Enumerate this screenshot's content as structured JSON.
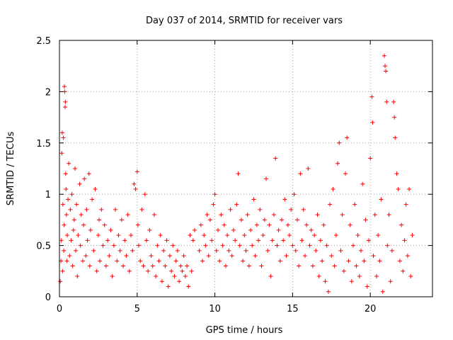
{
  "chart_data": {
    "type": "scatter",
    "title": "Day 037 of 2014, SRMTID for receiver vars",
    "xlabel": "GPS time / hours",
    "ylabel": "SRMTID / TECUs",
    "xlim": [
      0,
      24
    ],
    "ylim": [
      0,
      2.5
    ],
    "xticks": [
      0,
      5,
      10,
      15,
      20
    ],
    "xtick_labels": [
      "0",
      "5",
      "10",
      "15",
      "20"
    ],
    "yticks": [
      0,
      0.5,
      1,
      1.5,
      2,
      2.5
    ],
    "ytick_labels": [
      "0",
      "0.5",
      "1",
      "1.5",
      "2",
      "2.5"
    ],
    "grid": true,
    "marker": "+",
    "color": "#ff0000",
    "series": [
      {
        "name": "SRMTID",
        "points": [
          [
            0.05,
            0.15
          ],
          [
            0.1,
            0.35
          ],
          [
            0.12,
            0.55
          ],
          [
            0.15,
            1.4
          ],
          [
            0.18,
            1.6
          ],
          [
            0.2,
            0.25
          ],
          [
            0.22,
            0.9
          ],
          [
            0.25,
            1.55
          ],
          [
            0.28,
            0.45
          ],
          [
            0.3,
            0.7
          ],
          [
            0.32,
            2.05
          ],
          [
            0.34,
            2.0
          ],
          [
            0.36,
            1.85
          ],
          [
            0.38,
            1.9
          ],
          [
            0.4,
            1.2
          ],
          [
            0.42,
            1.05
          ],
          [
            0.45,
            0.8
          ],
          [
            0.48,
            0.35
          ],
          [
            0.5,
            0.6
          ],
          [
            0.55,
            0.95
          ],
          [
            0.6,
            1.3
          ],
          [
            0.65,
            0.4
          ],
          [
            0.7,
            0.85
          ],
          [
            0.75,
            0.55
          ],
          [
            0.8,
            1.0
          ],
          [
            0.85,
            0.3
          ],
          [
            0.9,
            0.65
          ],
          [
            0.95,
            0.75
          ],
          [
            1.0,
            1.25
          ],
          [
            1.05,
            0.45
          ],
          [
            1.1,
            0.9
          ],
          [
            1.15,
            0.2
          ],
          [
            1.2,
            0.6
          ],
          [
            1.3,
            1.1
          ],
          [
            1.35,
            0.5
          ],
          [
            1.4,
            0.8
          ],
          [
            1.5,
            0.35
          ],
          [
            1.55,
            0.7
          ],
          [
            1.6,
            1.15
          ],
          [
            1.7,
            0.4
          ],
          [
            1.75,
            0.85
          ],
          [
            1.8,
            0.55
          ],
          [
            1.9,
            1.2
          ],
          [
            1.95,
            0.3
          ],
          [
            2.0,
            0.65
          ],
          [
            2.1,
            0.95
          ],
          [
            2.2,
            0.45
          ],
          [
            2.3,
            1.05
          ],
          [
            2.4,
            0.25
          ],
          [
            2.5,
            0.6
          ],
          [
            2.55,
            0.75
          ],
          [
            2.6,
            0.35
          ],
          [
            2.7,
            0.85
          ],
          [
            2.8,
            0.5
          ],
          [
            2.9,
            0.7
          ],
          [
            3.0,
            0.3
          ],
          [
            3.1,
            0.55
          ],
          [
            3.2,
            0.4
          ],
          [
            3.3,
            0.65
          ],
          [
            3.4,
            0.2
          ],
          [
            3.5,
            0.5
          ],
          [
            3.6,
            0.85
          ],
          [
            3.7,
            0.35
          ],
          [
            3.8,
            0.6
          ],
          [
            3.9,
            0.45
          ],
          [
            4.0,
            0.75
          ],
          [
            4.1,
            0.3
          ],
          [
            4.2,
            0.55
          ],
          [
            4.3,
            0.4
          ],
          [
            4.4,
            0.8
          ],
          [
            4.5,
            0.25
          ],
          [
            4.6,
            0.6
          ],
          [
            4.7,
            0.45
          ],
          [
            4.8,
            1.1
          ],
          [
            4.9,
            1.05
          ],
          [
            5.0,
            1.22
          ],
          [
            5.05,
            0.7
          ],
          [
            5.1,
            0.5
          ],
          [
            5.2,
            0.35
          ],
          [
            5.3,
            0.85
          ],
          [
            5.4,
            0.3
          ],
          [
            5.5,
            1.0
          ],
          [
            5.6,
            0.55
          ],
          [
            5.7,
            0.25
          ],
          [
            5.8,
            0.65
          ],
          [
            5.9,
            0.4
          ],
          [
            6.0,
            0.3
          ],
          [
            6.1,
            0.8
          ],
          [
            6.2,
            0.2
          ],
          [
            6.3,
            0.5
          ],
          [
            6.4,
            0.35
          ],
          [
            6.5,
            0.6
          ],
          [
            6.6,
            0.15
          ],
          [
            6.7,
            0.45
          ],
          [
            6.8,
            0.3
          ],
          [
            6.9,
            0.55
          ],
          [
            7.0,
            0.1
          ],
          [
            7.1,
            0.4
          ],
          [
            7.2,
            0.25
          ],
          [
            7.3,
            0.5
          ],
          [
            7.4,
            0.2
          ],
          [
            7.5,
            0.35
          ],
          [
            7.6,
            0.45
          ],
          [
            7.7,
            0.15
          ],
          [
            7.8,
            0.3
          ],
          [
            7.9,
            0.25
          ],
          [
            8.0,
            0.4
          ],
          [
            8.1,
            0.2
          ],
          [
            8.2,
            0.3
          ],
          [
            8.3,
            0.1
          ],
          [
            8.4,
            0.6
          ],
          [
            8.5,
            0.25
          ],
          [
            8.6,
            0.55
          ],
          [
            8.7,
            0.65
          ],
          [
            9.0,
            0.45
          ],
          [
            9.1,
            0.7
          ],
          [
            9.2,
            0.35
          ],
          [
            9.3,
            0.6
          ],
          [
            9.4,
            0.5
          ],
          [
            9.5,
            0.8
          ],
          [
            9.6,
            0.4
          ],
          [
            9.7,
            0.75
          ],
          [
            9.8,
            0.55
          ],
          [
            9.9,
            0.9
          ],
          [
            10.0,
            1.0
          ],
          [
            10.1,
            0.45
          ],
          [
            10.2,
            0.65
          ],
          [
            10.3,
            0.35
          ],
          [
            10.4,
            0.8
          ],
          [
            10.5,
            0.5
          ],
          [
            10.6,
            0.7
          ],
          [
            10.7,
            0.3
          ],
          [
            10.8,
            0.6
          ],
          [
            10.9,
            0.45
          ],
          [
            11.0,
            0.85
          ],
          [
            11.1,
            0.4
          ],
          [
            11.2,
            0.65
          ],
          [
            11.3,
            0.55
          ],
          [
            11.4,
            0.9
          ],
          [
            11.5,
            1.2
          ],
          [
            11.6,
            0.5
          ],
          [
            11.7,
            0.75
          ],
          [
            11.8,
            0.35
          ],
          [
            11.9,
            0.6
          ],
          [
            12.0,
            0.45
          ],
          [
            12.1,
            0.8
          ],
          [
            12.2,
            0.3
          ],
          [
            12.3,
            0.65
          ],
          [
            12.4,
            0.5
          ],
          [
            12.5,
            0.95
          ],
          [
            12.6,
            0.4
          ],
          [
            12.7,
            0.7
          ],
          [
            12.8,
            0.55
          ],
          [
            12.9,
            0.85
          ],
          [
            13.0,
            0.3
          ],
          [
            13.1,
            0.6
          ],
          [
            13.2,
            0.75
          ],
          [
            13.3,
            1.15
          ],
          [
            13.4,
            0.45
          ],
          [
            13.5,
            0.7
          ],
          [
            13.6,
            0.2
          ],
          [
            13.7,
            0.55
          ],
          [
            13.8,
            0.8
          ],
          [
            13.9,
            1.35
          ],
          [
            14.0,
            0.5
          ],
          [
            14.1,
            0.65
          ],
          [
            14.2,
            0.35
          ],
          [
            14.3,
            0.75
          ],
          [
            14.4,
            0.55
          ],
          [
            14.5,
            0.95
          ],
          [
            14.6,
            0.4
          ],
          [
            14.7,
            0.7
          ],
          [
            14.8,
            0.6
          ],
          [
            14.9,
            0.85
          ],
          [
            15.0,
            0.5
          ],
          [
            15.1,
            1.0
          ],
          [
            15.2,
            0.45
          ],
          [
            15.3,
            0.75
          ],
          [
            15.4,
            0.3
          ],
          [
            15.5,
            1.2
          ],
          [
            15.6,
            0.55
          ],
          [
            15.7,
            0.85
          ],
          [
            15.8,
            0.4
          ],
          [
            15.9,
            0.7
          ],
          [
            16.0,
            1.25
          ],
          [
            16.1,
            0.5
          ],
          [
            16.2,
            0.65
          ],
          [
            16.3,
            0.3
          ],
          [
            16.4,
            0.6
          ],
          [
            16.5,
            0.45
          ],
          [
            16.6,
            0.8
          ],
          [
            16.7,
            0.2
          ],
          [
            16.8,
            0.55
          ],
          [
            16.9,
            0.35
          ],
          [
            17.0,
            0.7
          ],
          [
            17.1,
            0.15
          ],
          [
            17.2,
            0.5
          ],
          [
            17.3,
            0.05
          ],
          [
            17.4,
            0.9
          ],
          [
            17.5,
            0.4
          ],
          [
            17.6,
            1.05
          ],
          [
            17.7,
            0.3
          ],
          [
            17.8,
            0.6
          ],
          [
            17.9,
            1.3
          ],
          [
            18.0,
            1.5
          ],
          [
            18.1,
            0.45
          ],
          [
            18.2,
            0.8
          ],
          [
            18.3,
            0.25
          ],
          [
            18.4,
            1.2
          ],
          [
            18.5,
            1.55
          ],
          [
            18.6,
            0.35
          ],
          [
            18.7,
            0.7
          ],
          [
            18.8,
            0.15
          ],
          [
            18.9,
            0.5
          ],
          [
            19.0,
            0.9
          ],
          [
            19.1,
            0.3
          ],
          [
            19.2,
            0.6
          ],
          [
            19.3,
            0.2
          ],
          [
            19.4,
            0.45
          ],
          [
            19.5,
            1.1
          ],
          [
            19.6,
            0.35
          ],
          [
            19.7,
            0.75
          ],
          [
            19.8,
            0.1
          ],
          [
            19.9,
            0.55
          ],
          [
            20.0,
            1.35
          ],
          [
            20.1,
            1.95
          ],
          [
            20.15,
            1.7
          ],
          [
            20.2,
            0.4
          ],
          [
            20.3,
            0.8
          ],
          [
            20.4,
            0.2
          ],
          [
            20.5,
            0.6
          ],
          [
            20.6,
            0.35
          ],
          [
            20.7,
            0.95
          ],
          [
            20.8,
            0.05
          ],
          [
            20.9,
            2.35
          ],
          [
            20.95,
            2.25
          ],
          [
            21.0,
            2.2
          ],
          [
            21.05,
            1.9
          ],
          [
            21.1,
            0.5
          ],
          [
            21.2,
            0.8
          ],
          [
            21.3,
            0.15
          ],
          [
            21.4,
            0.45
          ],
          [
            21.5,
            1.9
          ],
          [
            21.55,
            1.75
          ],
          [
            21.6,
            1.55
          ],
          [
            21.7,
            1.2
          ],
          [
            21.8,
            1.05
          ],
          [
            21.9,
            0.35
          ],
          [
            22.0,
            0.7
          ],
          [
            22.1,
            0.25
          ],
          [
            22.2,
            0.55
          ],
          [
            22.3,
            0.9
          ],
          [
            22.4,
            0.4
          ],
          [
            22.5,
            1.05
          ],
          [
            22.6,
            0.2
          ],
          [
            22.7,
            0.6
          ]
        ]
      }
    ]
  }
}
